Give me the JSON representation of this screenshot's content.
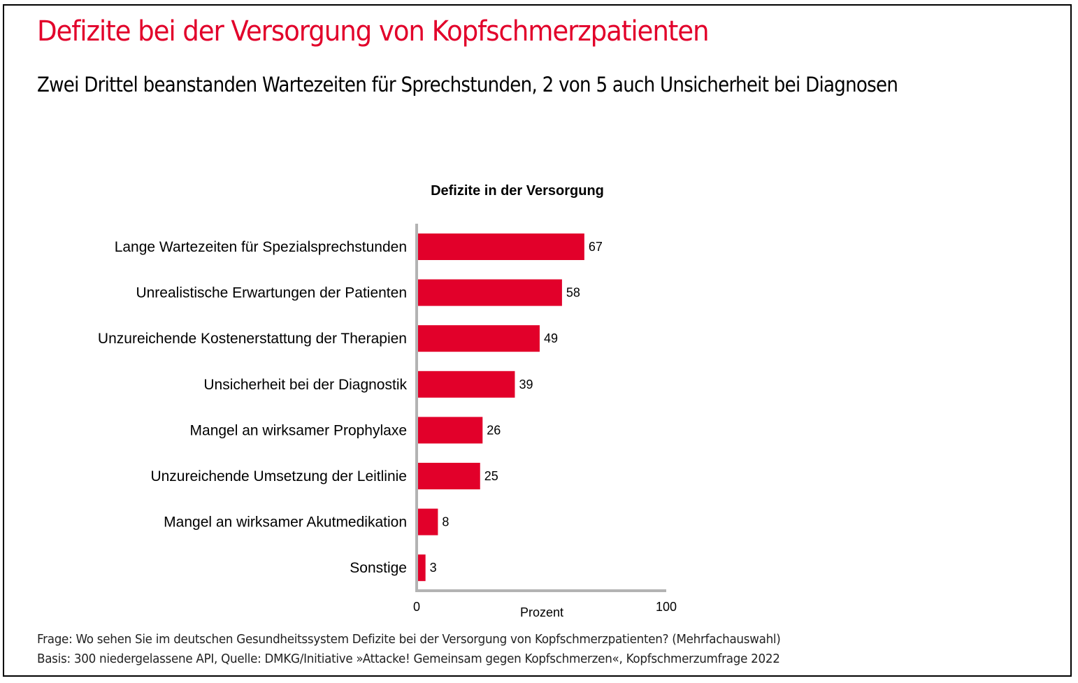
{
  "header": {
    "title": "Defizite bei der Versorgung von Kopfschmerzpatienten",
    "subtitle": "Zwei Drittel beanstanden Wartezeiten für Sprechstunden, 2 von 5 auch Unsicherheit bei Diagnosen"
  },
  "colors": {
    "accent": "#e2002a",
    "axis": "#b3b3b3",
    "text": "#000000"
  },
  "chart_data": {
    "type": "bar",
    "orientation": "horizontal",
    "title": "Defizite in der Versorgung",
    "xlabel": "Prozent",
    "ylabel": "",
    "xlim": [
      0,
      100
    ],
    "xticks": [
      "0",
      "100"
    ],
    "grid": false,
    "categories": [
      "Lange Wartezeiten für Spezialsprechstunden",
      "Unrealistische Erwartungen der Patienten",
      "Unzureichende Kostenerstattung der Therapien",
      "Unsicherheit bei der Diagnostik",
      "Mangel an wirksamer Prophylaxe",
      "Unzureichende Umsetzung der Leitlinie",
      "Mangel an wirksamer Akutmedikation",
      "Sonstige"
    ],
    "values": [
      67,
      58,
      49,
      39,
      26,
      25,
      8,
      3
    ]
  },
  "footer": {
    "question": "Frage: Wo sehen Sie im deutschen Gesundheitssystem Defizite bei der Versorgung von Kopfschmerzpatienten? (Mehrfachauswahl)",
    "source": "Basis: 300 niedergelassene API, Quelle: DMKG/Initiative »Attacke! Gemeinsam gegen Kopfschmerzen«, Kopfschmerzumfrage 2022"
  }
}
